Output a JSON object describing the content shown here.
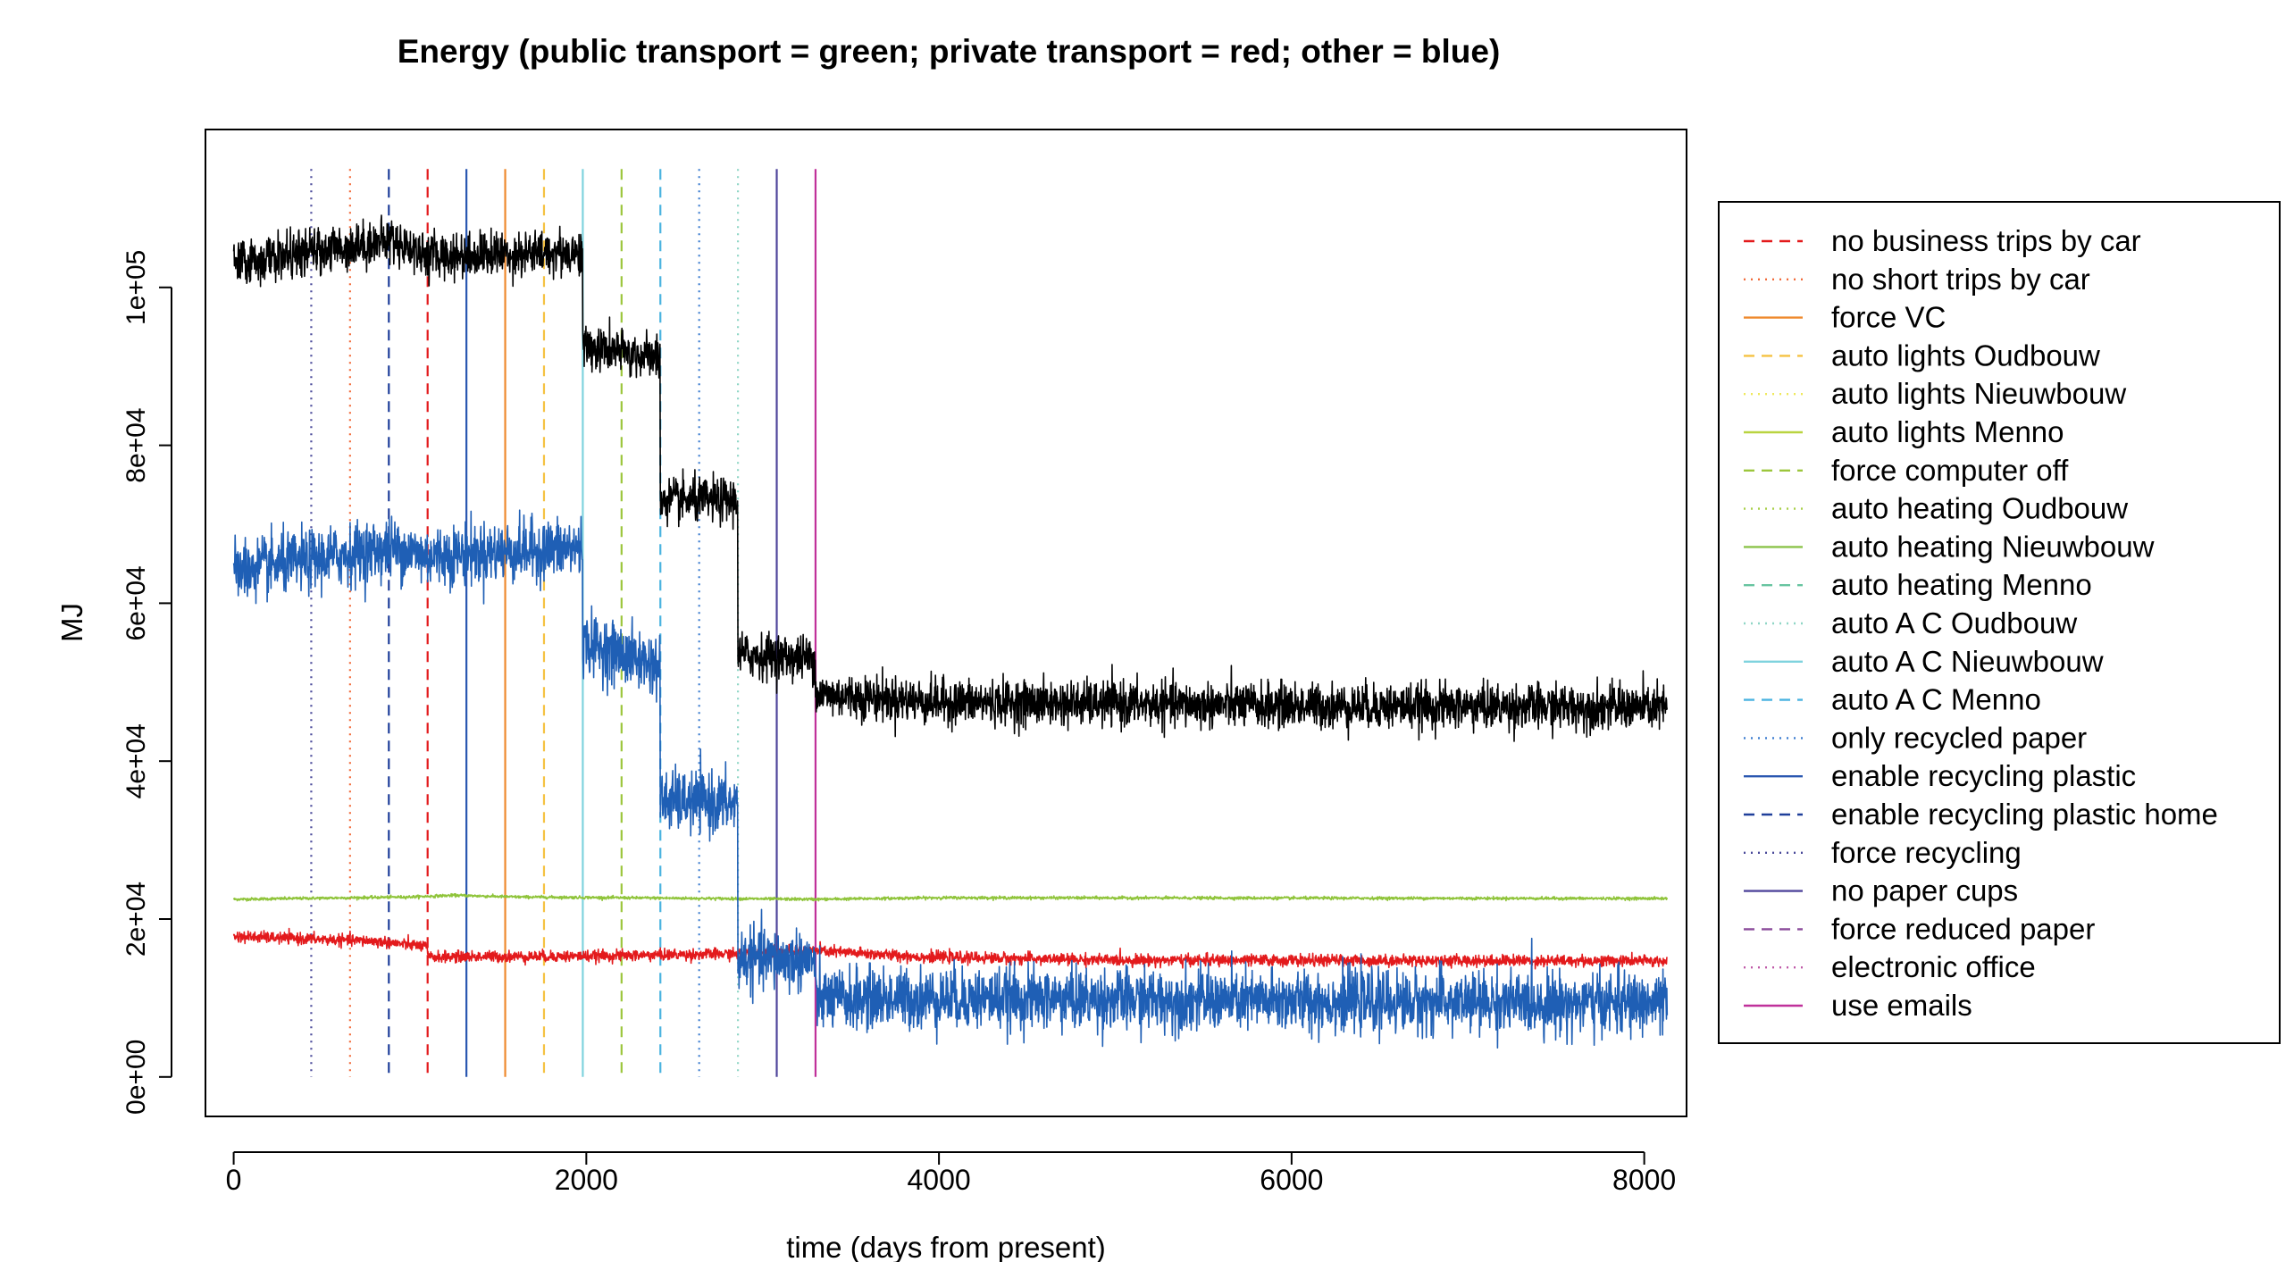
{
  "chart_data": {
    "type": "line",
    "title": "Energy (public transport = green; private transport = red; other = blue)",
    "xlabel": "time (days from present)",
    "ylabel": "MJ",
    "xlim": [
      -160,
      8240
    ],
    "ylim": [
      -5000,
      120000
    ],
    "x_ticks": [
      0,
      2000,
      4000,
      6000,
      8000
    ],
    "x_tick_labels": [
      "0",
      "2000",
      "4000",
      "6000",
      "8000"
    ],
    "y_ticks": [
      0,
      20000,
      40000,
      60000,
      80000,
      100000
    ],
    "y_tick_labels": [
      "0e+00",
      "2e+04",
      "4e+04",
      "6e+04",
      "8e+04",
      "1e+05"
    ],
    "grid": false,
    "legend_position": "right",
    "series": [
      {
        "color": "#000000",
        "noise": 2800,
        "points": [
          [
            0,
            103000
          ],
          [
            900,
            106000
          ],
          [
            1100,
            104000
          ],
          [
            1980,
            104500
          ],
          [
            1980,
            92500
          ],
          [
            2420,
            91000
          ],
          [
            2420,
            73000
          ],
          [
            2860,
            73000
          ],
          [
            2860,
            53500
          ],
          [
            3300,
            53000
          ],
          [
            3300,
            48500
          ],
          [
            4000,
            47500
          ],
          [
            6000,
            47000
          ],
          [
            8130,
            46800
          ]
        ]
      },
      {
        "color": "#1f5fb5",
        "noise": 3800,
        "points": [
          [
            0,
            64000
          ],
          [
            900,
            67000
          ],
          [
            1100,
            66000
          ],
          [
            1980,
            67000
          ],
          [
            1980,
            55000
          ],
          [
            2420,
            52000
          ],
          [
            2420,
            35000
          ],
          [
            2860,
            34500
          ],
          [
            2860,
            15000
          ],
          [
            3300,
            14800
          ],
          [
            3300,
            9800
          ],
          [
            4000,
            10000
          ],
          [
            6000,
            9600
          ],
          [
            8130,
            9300
          ]
        ]
      },
      {
        "color": "#e31a1c",
        "noise": 700,
        "points": [
          [
            0,
            17800
          ],
          [
            800,
            17200
          ],
          [
            1100,
            16500
          ],
          [
            1100,
            15200
          ],
          [
            2000,
            15300
          ],
          [
            2860,
            15600
          ],
          [
            3300,
            16000
          ],
          [
            3900,
            15200
          ],
          [
            5000,
            14800
          ],
          [
            8130,
            14700
          ]
        ]
      },
      {
        "color": "#8fc43a",
        "noise": 180,
        "points": [
          [
            0,
            22500
          ],
          [
            1000,
            22800
          ],
          [
            1250,
            23000
          ],
          [
            1600,
            22800
          ],
          [
            3300,
            22500
          ],
          [
            4000,
            22700
          ],
          [
            8130,
            22600
          ]
        ]
      }
    ],
    "interventions": [
      {
        "name": "no business trips by car",
        "color": "#e31a1c",
        "dash": "dashed",
        "x": 1100
      },
      {
        "name": "no short trips by car",
        "color": "#f26b3a",
        "dash": "dotted",
        "x": 660
      },
      {
        "name": "force VC",
        "color": "#ef8a2e",
        "dash": "solid",
        "x": 1540
      },
      {
        "name": "auto lights Oudbouw",
        "color": "#f5c242",
        "dash": "dashed",
        "x": 1760
      },
      {
        "name": "auto lights Nieuwbouw",
        "color": "#efe85a",
        "dash": "dotted",
        "x": null
      },
      {
        "name": "auto lights Menno",
        "color": "#b9d440",
        "dash": "solid",
        "x": null
      },
      {
        "name": "force computer off",
        "color": "#9cc63c",
        "dash": "dashed",
        "x": 2200
      },
      {
        "name": "auto heating Oudbouw",
        "color": "#a8cf48",
        "dash": "dotted",
        "x": null
      },
      {
        "name": "auto heating Nieuwbouw",
        "color": "#8bc34a",
        "dash": "solid",
        "x": null
      },
      {
        "name": "auto heating Menno",
        "color": "#67c4a0",
        "dash": "dashed",
        "x": null
      },
      {
        "name": "auto A C Oudbouw",
        "color": "#8fd6c6",
        "dash": "dotted",
        "x": 2860
      },
      {
        "name": "auto A C Nieuwbouw",
        "color": "#7fd3de",
        "dash": "solid",
        "x": 1980
      },
      {
        "name": "auto A C Menno",
        "color": "#4ab3e0",
        "dash": "dashed",
        "x": 2420
      },
      {
        "name": "only recycled paper",
        "color": "#3f7fd0",
        "dash": "dotted",
        "x": 2640
      },
      {
        "name": "enable recycling plastic",
        "color": "#2a57b0",
        "dash": "solid",
        "x": 1320
      },
      {
        "name": "enable recycling plastic  home",
        "color": "#1f3f9a",
        "dash": "dashed",
        "x": 880
      },
      {
        "name": "force recycling",
        "color": "#4a4a9a",
        "dash": "dotted",
        "x": 440
      },
      {
        "name": "no paper cups",
        "color": "#50469c",
        "dash": "solid",
        "x": 3080
      },
      {
        "name": "force reduced paper",
        "color": "#8a4a9a",
        "dash": "dashed",
        "x": null
      },
      {
        "name": "electronic office",
        "color": "#c05aa8",
        "dash": "dotted",
        "x": null
      },
      {
        "name": "use emails",
        "color": "#c0309a",
        "dash": "solid",
        "x": 3300
      }
    ]
  }
}
